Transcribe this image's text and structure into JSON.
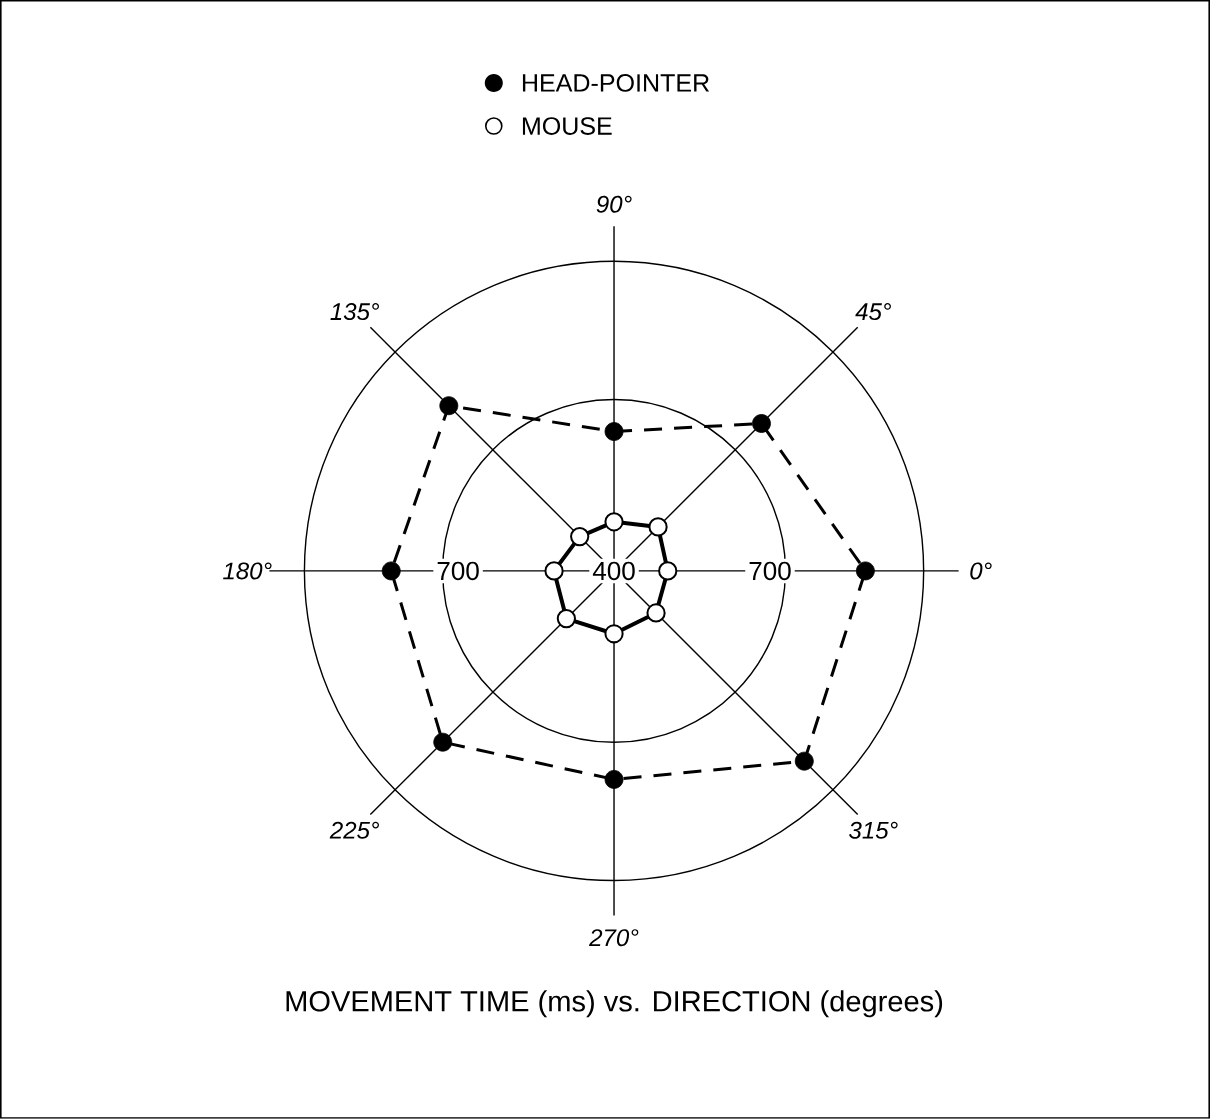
{
  "chart_data": {
    "type": "radar",
    "title": "MOVEMENT TIME  (ms)  vs.  DIRECTION (degrees)",
    "categories": [
      "90°",
      "45°",
      "0°",
      "315°",
      "270°",
      "225°",
      "180°",
      "135°"
    ],
    "series": [
      {
        "name": "HEAD-POINTER",
        "color": "#000000",
        "line_style": "dashed",
        "marker": "circle",
        "values": [
          644,
          765,
          840,
          871,
          765,
          824,
          790,
          809
        ]
      },
      {
        "name": "MOUSE",
        "color": "#000000",
        "line_style": "solid",
        "marker": "open circle",
        "values": [
          486,
          509,
          494,
          504,
          510,
          518,
          505,
          485
        ]
      }
    ],
    "ylim": [
      400,
      942
    ],
    "yticks": [
      400,
      700,
      700
    ],
    "grid": true,
    "legend": "top"
  }
}
